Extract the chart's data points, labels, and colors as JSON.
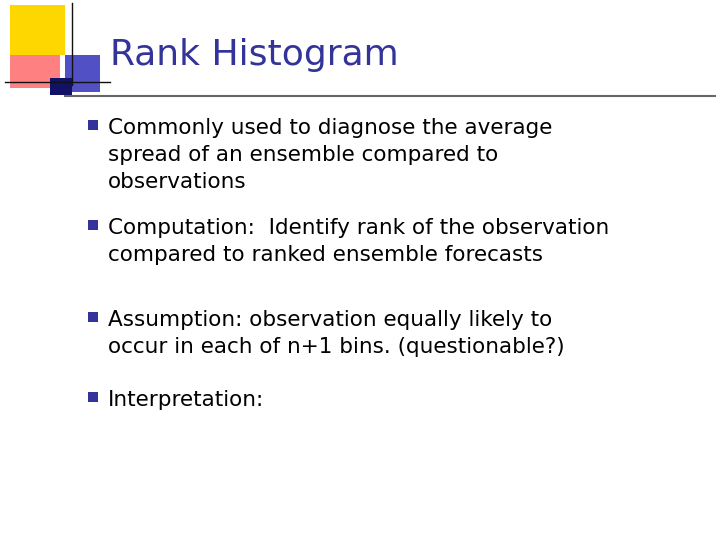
{
  "title": "Rank Histogram",
  "title_color": "#333399",
  "title_fontsize": 26,
  "background_color": "#FFFFFF",
  "bullet_color": "#333399",
  "text_color": "#000000",
  "bullet_fontsize": 15.5,
  "bullets": [
    "Commonly used to diagnose the average\nspread of an ensemble compared to\nobservations",
    "Computation:  Identify rank of the observation\ncompared to ranked ensemble forecasts",
    "Assumption: observation equally likely to\noccur in each of n+1 bins. (questionable?)",
    "Interpretation:"
  ],
  "separator_color": "#666666",
  "dec_yellow": "#FFD700",
  "dec_red": "#FF5555",
  "dec_blue": "#3333BB",
  "dec_darkblue": "#111166"
}
